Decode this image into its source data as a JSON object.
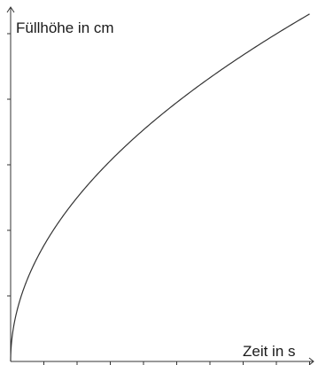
{
  "chart_data": {
    "type": "line",
    "xlabel": "Zeit in s",
    "ylabel": "Füllhöhe in cm",
    "x_ticks": 9,
    "y_ticks": 5,
    "xlim": [
      0,
      9
    ],
    "ylim": [
      0,
      5.3
    ],
    "series": [
      {
        "x": [
          0,
          0.1,
          0.25,
          0.5,
          1,
          1.5,
          2,
          3,
          4,
          5,
          6,
          7,
          8,
          9
        ],
        "values": [
          0,
          0.6,
          0.95,
          1.35,
          1.9,
          2.3,
          2.65,
          3.2,
          3.7,
          4.1,
          4.5,
          4.8,
          5.1,
          5.3
        ]
      }
    ],
    "grid": false,
    "colors": {
      "line": "#333333",
      "axis": "#333333",
      "text": "#1a1a1a"
    }
  }
}
